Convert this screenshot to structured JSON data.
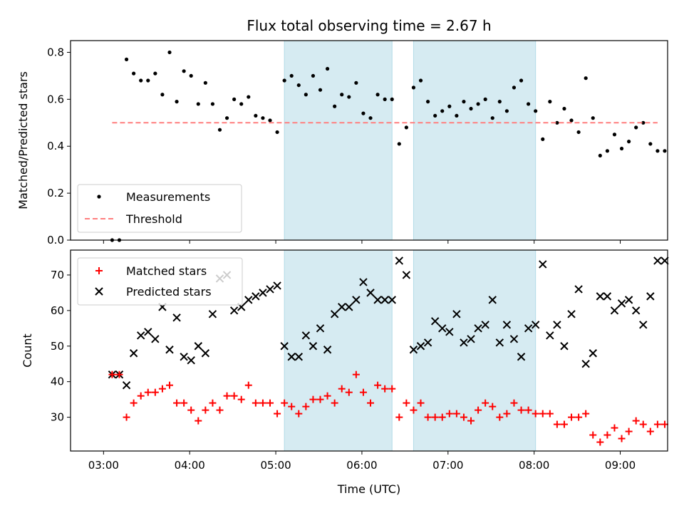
{
  "chart_data": [
    {
      "type": "scatter",
      "title": "Flux total observing time = 2.67 h",
      "xlabel": "",
      "ylabel": "Matched/Predicted stars",
      "ylim": [
        0.0,
        0.85
      ],
      "yticks": [
        "0.0",
        "0.2",
        "0.4",
        "0.6",
        "0.8"
      ],
      "ytick_values": [
        0.0,
        0.2,
        0.4,
        0.6,
        0.8
      ],
      "grid": false,
      "legend_position": "bottom-left",
      "series": [
        {
          "name": "Measurements",
          "marker": "dot",
          "color": "#000000",
          "x": [
            "03:06",
            "03:11",
            "03:16",
            "03:21",
            "03:26",
            "03:31",
            "03:36",
            "03:41",
            "03:46",
            "03:51",
            "03:56",
            "04:01",
            "04:06",
            "04:11",
            "04:16",
            "04:21",
            "04:26",
            "04:31",
            "04:36",
            "04:41",
            "04:46",
            "04:51",
            "04:56",
            "05:01",
            "05:06",
            "05:11",
            "05:16",
            "05:21",
            "05:26",
            "05:31",
            "05:36",
            "05:41",
            "05:46",
            "05:51",
            "05:56",
            "06:01",
            "06:06",
            "06:11",
            "06:16",
            "06:21",
            "06:26",
            "06:31",
            "06:36",
            "06:41",
            "06:46",
            "06:51",
            "06:56",
            "07:01",
            "07:06",
            "07:11",
            "07:16",
            "07:21",
            "07:26",
            "07:31",
            "07:36",
            "07:41",
            "07:46",
            "07:51",
            "07:56",
            "08:01",
            "08:06",
            "08:11",
            "08:16",
            "08:21",
            "08:26",
            "08:31",
            "08:36",
            "08:41",
            "08:46",
            "08:51",
            "08:56",
            "09:01",
            "09:06",
            "09:11",
            "09:16",
            "09:21",
            "09:26",
            "09:31"
          ],
          "y": [
            0.0,
            0.0,
            0.77,
            0.71,
            0.68,
            0.68,
            0.71,
            0.62,
            0.8,
            0.59,
            0.72,
            0.7,
            0.58,
            0.67,
            0.58,
            0.47,
            0.52,
            0.6,
            0.58,
            0.61,
            0.53,
            0.52,
            0.51,
            0.46,
            0.68,
            0.7,
            0.66,
            0.62,
            0.7,
            0.64,
            0.73,
            0.57,
            0.62,
            0.61,
            0.67,
            0.54,
            0.52,
            0.62,
            0.6,
            0.6,
            0.41,
            0.48,
            0.65,
            0.68,
            0.59,
            0.53,
            0.55,
            0.57,
            0.53,
            0.59,
            0.56,
            0.58,
            0.6,
            0.52,
            0.59,
            0.55,
            0.65,
            0.68,
            0.58,
            0.55,
            0.43,
            0.59,
            0.5,
            0.56,
            0.51,
            0.46,
            0.69,
            0.52,
            0.36,
            0.38,
            0.45,
            0.39,
            0.42,
            0.48,
            0.5,
            0.41,
            0.38,
            0.38
          ]
        },
        {
          "name": "Threshold",
          "style": "dashed",
          "color": "#ff7f7f",
          "x": [
            "03:06",
            "09:26"
          ],
          "y": [
            0.5,
            0.5
          ]
        }
      ]
    },
    {
      "type": "scatter",
      "title": "",
      "xlabel": "Time (UTC)",
      "ylabel": "Count",
      "ylim": [
        20.5,
        77
      ],
      "yticks": [
        "30",
        "40",
        "50",
        "60",
        "70"
      ],
      "ytick_values": [
        30,
        40,
        50,
        60,
        70
      ],
      "grid": false,
      "legend_position": "top-left",
      "series": [
        {
          "name": "Matched stars",
          "marker": "plus",
          "color": "#ff0000",
          "x": [
            "03:06",
            "03:11",
            "03:16",
            "03:21",
            "03:26",
            "03:31",
            "03:36",
            "03:41",
            "03:46",
            "03:51",
            "03:56",
            "04:01",
            "04:06",
            "04:11",
            "04:16",
            "04:21",
            "04:26",
            "04:31",
            "04:36",
            "04:41",
            "04:46",
            "04:51",
            "04:56",
            "05:01",
            "05:06",
            "05:11",
            "05:16",
            "05:21",
            "05:26",
            "05:31",
            "05:36",
            "05:41",
            "05:46",
            "05:51",
            "05:56",
            "06:01",
            "06:06",
            "06:11",
            "06:16",
            "06:21",
            "06:26",
            "06:31",
            "06:36",
            "06:41",
            "06:46",
            "06:51",
            "06:56",
            "07:01",
            "07:06",
            "07:11",
            "07:16",
            "07:21",
            "07:26",
            "07:31",
            "07:36",
            "07:41",
            "07:46",
            "07:51",
            "07:56",
            "08:01",
            "08:06",
            "08:11",
            "08:16",
            "08:21",
            "08:26",
            "08:31",
            "08:36",
            "08:41",
            "08:46",
            "08:51",
            "08:56",
            "09:01",
            "09:06",
            "09:11",
            "09:16",
            "09:21",
            "09:26",
            "09:31"
          ],
          "y": [
            42,
            42,
            30,
            34,
            36,
            37,
            37,
            38,
            39,
            34,
            34,
            32,
            29,
            32,
            34,
            32,
            36,
            36,
            35,
            39,
            34,
            34,
            34,
            31,
            34,
            33,
            31,
            33,
            35,
            35,
            36,
            34,
            38,
            37,
            42,
            37,
            34,
            39,
            38,
            38,
            30,
            34,
            32,
            34,
            30,
            30,
            30,
            31,
            31,
            30,
            29,
            32,
            34,
            33,
            30,
            31,
            34,
            32,
            32,
            31,
            31,
            31,
            28,
            28,
            30,
            30,
            31,
            25,
            23,
            25,
            27,
            24,
            26,
            29,
            28,
            26,
            28,
            28
          ]
        },
        {
          "name": "Predicted stars",
          "marker": "x",
          "color": "#000000",
          "x": [
            "03:06",
            "03:11",
            "03:16",
            "03:21",
            "03:26",
            "03:31",
            "03:36",
            "03:41",
            "03:46",
            "03:51",
            "03:56",
            "04:01",
            "04:06",
            "04:11",
            "04:16",
            "04:21",
            "04:26",
            "04:31",
            "04:36",
            "04:41",
            "04:46",
            "04:51",
            "04:56",
            "05:01",
            "05:06",
            "05:11",
            "05:16",
            "05:21",
            "05:26",
            "05:31",
            "05:36",
            "05:41",
            "05:46",
            "05:51",
            "05:56",
            "06:01",
            "06:06",
            "06:11",
            "06:16",
            "06:21",
            "06:26",
            "06:31",
            "06:36",
            "06:41",
            "06:46",
            "06:51",
            "06:56",
            "07:01",
            "07:06",
            "07:11",
            "07:16",
            "07:21",
            "07:26",
            "07:31",
            "07:36",
            "07:41",
            "07:46",
            "07:51",
            "07:56",
            "08:01",
            "08:06",
            "08:11",
            "08:16",
            "08:21",
            "08:26",
            "08:31",
            "08:36",
            "08:41",
            "08:46",
            "08:51",
            "08:56",
            "09:01",
            "09:06",
            "09:11",
            "09:16",
            "09:21",
            "09:26",
            "09:31"
          ],
          "y": [
            42,
            42,
            39,
            48,
            53,
            54,
            52,
            61,
            49,
            58,
            47,
            46,
            50,
            48,
            59,
            69,
            70,
            60,
            61,
            63,
            64,
            65,
            66,
            67,
            50,
            47,
            47,
            53,
            50,
            55,
            49,
            59,
            61,
            61,
            63,
            68,
            65,
            63,
            63,
            63,
            74,
            70,
            49,
            50,
            51,
            57,
            55,
            54,
            59,
            51,
            52,
            55,
            56,
            63,
            51,
            56,
            52,
            47,
            55,
            56,
            73,
            53,
            56,
            50,
            59,
            66,
            45,
            48,
            64,
            64,
            60,
            62,
            63,
            60,
            56,
            64,
            74,
            74
          ]
        }
      ]
    }
  ],
  "xaxis": {
    "tick_labels": [
      "03:00",
      "04:00",
      "05:00",
      "06:00",
      "07:00",
      "08:00",
      "09:00"
    ],
    "tick_values": [
      "03:00",
      "04:00",
      "05:00",
      "06:00",
      "07:00",
      "08:00",
      "09:00"
    ],
    "range": [
      "02:37",
      "09:33"
    ]
  },
  "shaded_intervals": [
    {
      "start": "05:06",
      "end": "06:21",
      "color": "#add8e6"
    },
    {
      "start": "06:36",
      "end": "08:01",
      "color": "#add8e6"
    }
  ]
}
